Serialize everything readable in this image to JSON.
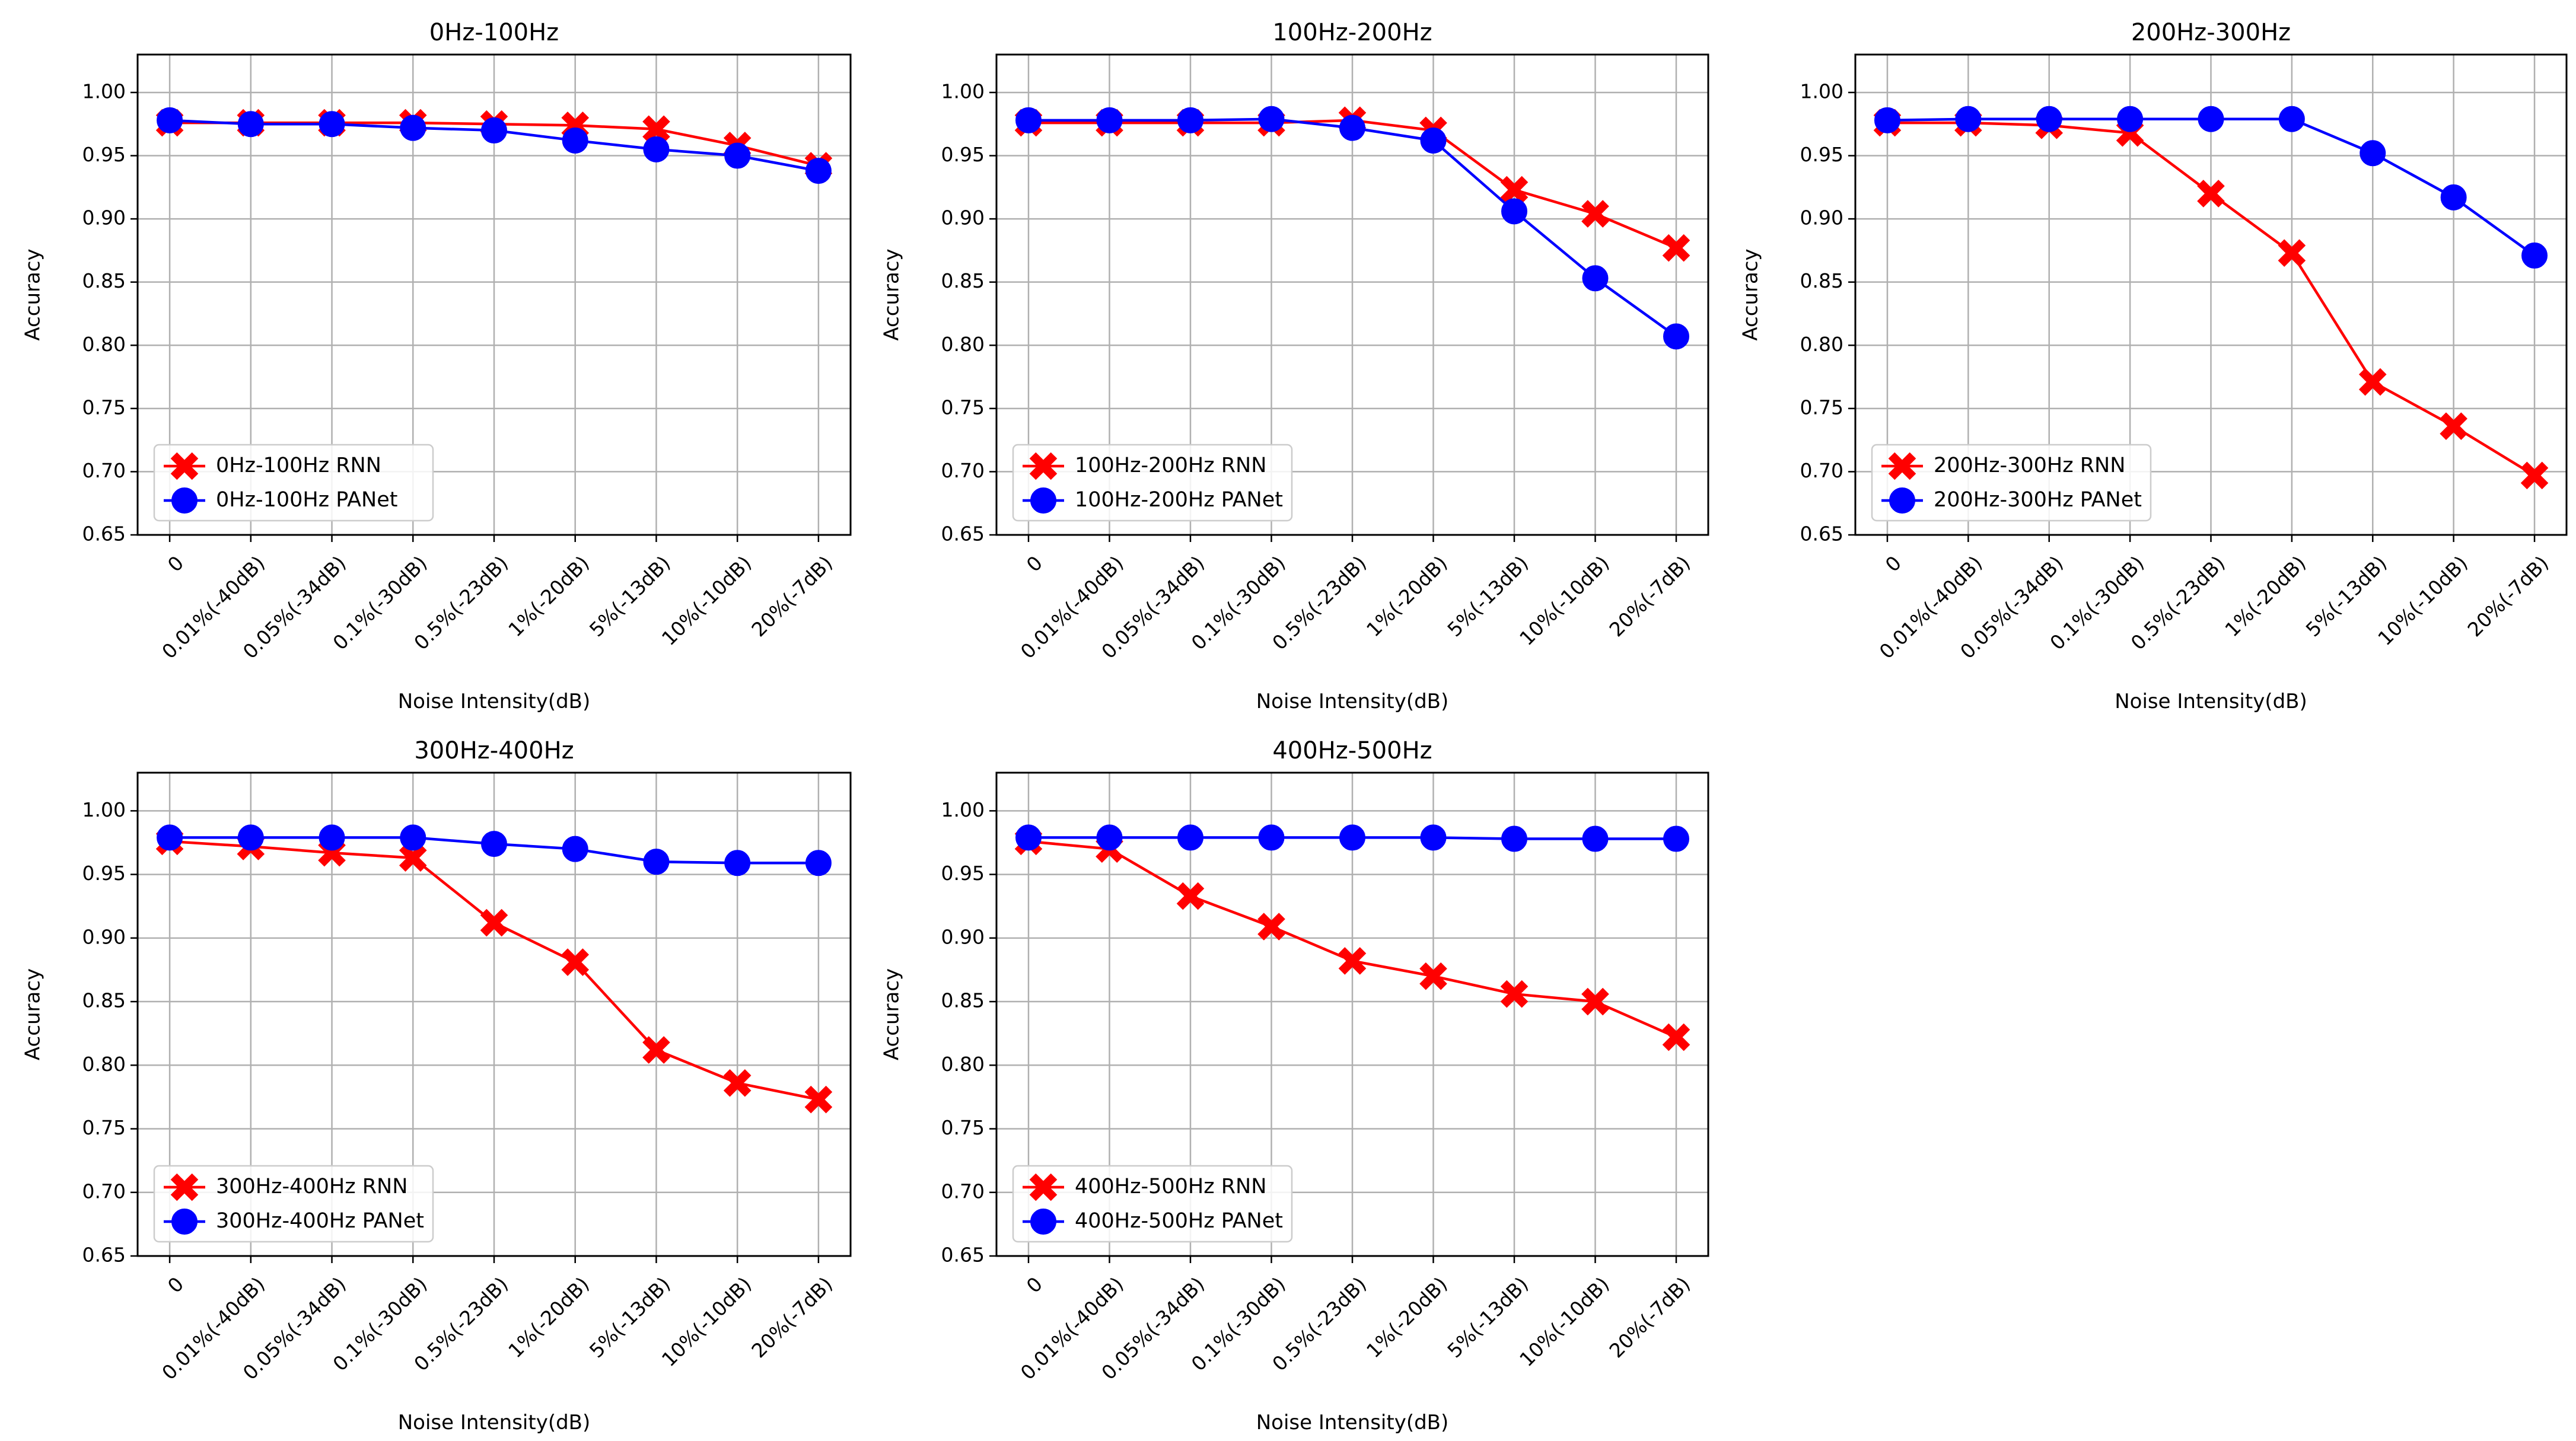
{
  "colors": {
    "rnn": "#ff0000",
    "panet": "#0000ff",
    "grid": "#b0b0b0",
    "axes": "#000000"
  },
  "chart_data": [
    {
      "type": "line",
      "title": "0Hz-100Hz",
      "xlabel": "Noise Intensity(dB)",
      "ylabel": "Accuracy",
      "ylim": [
        0.65,
        1.03
      ],
      "yticks": [
        "0.65",
        "0.70",
        "0.75",
        "0.80",
        "0.85",
        "0.90",
        "0.95",
        "1.00"
      ],
      "categories": [
        "0",
        "0.01%(-40dB)",
        "0.05%(-34dB)",
        "0.1%(-30dB)",
        "0.5%(-23dB)",
        "1%(-20dB)",
        "5%(-13dB)",
        "10%(-10dB)",
        "20%(-7dB)"
      ],
      "grid": true,
      "legend_position": "lower-left",
      "series": [
        {
          "name": "0Hz-100Hz RNN",
          "color": "#ff0000",
          "marker": "x-marker",
          "values": [
            0.976,
            0.976,
            0.976,
            0.976,
            0.975,
            0.974,
            0.971,
            0.958,
            0.942
          ]
        },
        {
          "name": "0Hz-100Hz PANet",
          "color": "#0000ff",
          "marker": "circle-marker",
          "values": [
            0.978,
            0.975,
            0.975,
            0.972,
            0.97,
            0.962,
            0.955,
            0.95,
            0.938
          ]
        }
      ]
    },
    {
      "type": "line",
      "title": "100Hz-200Hz",
      "xlabel": "Noise Intensity(dB)",
      "ylabel": "Accuracy",
      "ylim": [
        0.65,
        1.03
      ],
      "yticks": [
        "0.65",
        "0.70",
        "0.75",
        "0.80",
        "0.85",
        "0.90",
        "0.95",
        "1.00"
      ],
      "categories": [
        "0",
        "0.01%(-40dB)",
        "0.05%(-34dB)",
        "0.1%(-30dB)",
        "0.5%(-23dB)",
        "1%(-20dB)",
        "5%(-13dB)",
        "10%(-10dB)",
        "20%(-7dB)"
      ],
      "grid": true,
      "legend_position": "lower-left",
      "series": [
        {
          "name": "100Hz-200Hz RNN",
          "color": "#ff0000",
          "marker": "x-marker",
          "values": [
            0.976,
            0.976,
            0.976,
            0.976,
            0.978,
            0.97,
            0.923,
            0.904,
            0.877
          ]
        },
        {
          "name": "100Hz-200Hz PANet",
          "color": "#0000ff",
          "marker": "circle-marker",
          "values": [
            0.978,
            0.978,
            0.978,
            0.979,
            0.972,
            0.962,
            0.906,
            0.853,
            0.807
          ]
        }
      ]
    },
    {
      "type": "line",
      "title": "200Hz-300Hz",
      "xlabel": "Noise Intensity(dB)",
      "ylabel": "Accuracy",
      "ylim": [
        0.65,
        1.03
      ],
      "yticks": [
        "0.65",
        "0.70",
        "0.75",
        "0.80",
        "0.85",
        "0.90",
        "0.95",
        "1.00"
      ],
      "categories": [
        "0",
        "0.01%(-40dB)",
        "0.05%(-34dB)",
        "0.1%(-30dB)",
        "0.5%(-23dB)",
        "1%(-20dB)",
        "5%(-13dB)",
        "10%(-10dB)",
        "20%(-7dB)"
      ],
      "grid": true,
      "legend_position": "lower-left",
      "series": [
        {
          "name": "200Hz-300Hz RNN",
          "color": "#ff0000",
          "marker": "x-marker",
          "values": [
            0.976,
            0.976,
            0.974,
            0.968,
            0.92,
            0.873,
            0.771,
            0.736,
            0.697
          ]
        },
        {
          "name": "200Hz-300Hz PANet",
          "color": "#0000ff",
          "marker": "circle-marker",
          "values": [
            0.978,
            0.979,
            0.979,
            0.979,
            0.979,
            0.979,
            0.952,
            0.917,
            0.871
          ]
        }
      ]
    },
    {
      "type": "line",
      "title": "300Hz-400Hz",
      "xlabel": "Noise Intensity(dB)",
      "ylabel": "Accuracy",
      "ylim": [
        0.65,
        1.03
      ],
      "yticks": [
        "0.65",
        "0.70",
        "0.75",
        "0.80",
        "0.85",
        "0.90",
        "0.95",
        "1.00"
      ],
      "categories": [
        "0",
        "0.01%(-40dB)",
        "0.05%(-34dB)",
        "0.1%(-30dB)",
        "0.5%(-23dB)",
        "1%(-20dB)",
        "5%(-13dB)",
        "10%(-10dB)",
        "20%(-7dB)"
      ],
      "grid": true,
      "legend_position": "lower-left",
      "series": [
        {
          "name": "300Hz-400Hz RNN",
          "color": "#ff0000",
          "marker": "x-marker",
          "values": [
            0.976,
            0.972,
            0.967,
            0.963,
            0.912,
            0.881,
            0.812,
            0.786,
            0.773
          ]
        },
        {
          "name": "300Hz-400Hz PANet",
          "color": "#0000ff",
          "marker": "circle-marker",
          "values": [
            0.979,
            0.979,
            0.979,
            0.979,
            0.974,
            0.97,
            0.96,
            0.959,
            0.959
          ]
        }
      ]
    },
    {
      "type": "line",
      "title": "400Hz-500Hz",
      "xlabel": "Noise Intensity(dB)",
      "ylabel": "Accuracy",
      "ylim": [
        0.65,
        1.03
      ],
      "yticks": [
        "0.65",
        "0.70",
        "0.75",
        "0.80",
        "0.85",
        "0.90",
        "0.95",
        "1.00"
      ],
      "categories": [
        "0",
        "0.01%(-40dB)",
        "0.05%(-34dB)",
        "0.1%(-30dB)",
        "0.5%(-23dB)",
        "1%(-20dB)",
        "5%(-13dB)",
        "10%(-10dB)",
        "20%(-7dB)"
      ],
      "grid": true,
      "legend_position": "lower-left",
      "series": [
        {
          "name": "400Hz-500Hz RNN",
          "color": "#ff0000",
          "marker": "x-marker",
          "values": [
            0.976,
            0.97,
            0.933,
            0.909,
            0.882,
            0.87,
            0.856,
            0.85,
            0.822
          ]
        },
        {
          "name": "400Hz-500Hz PANet",
          "color": "#0000ff",
          "marker": "circle-marker",
          "values": [
            0.979,
            0.979,
            0.979,
            0.979,
            0.979,
            0.979,
            0.978,
            0.978,
            0.978
          ]
        }
      ]
    }
  ]
}
